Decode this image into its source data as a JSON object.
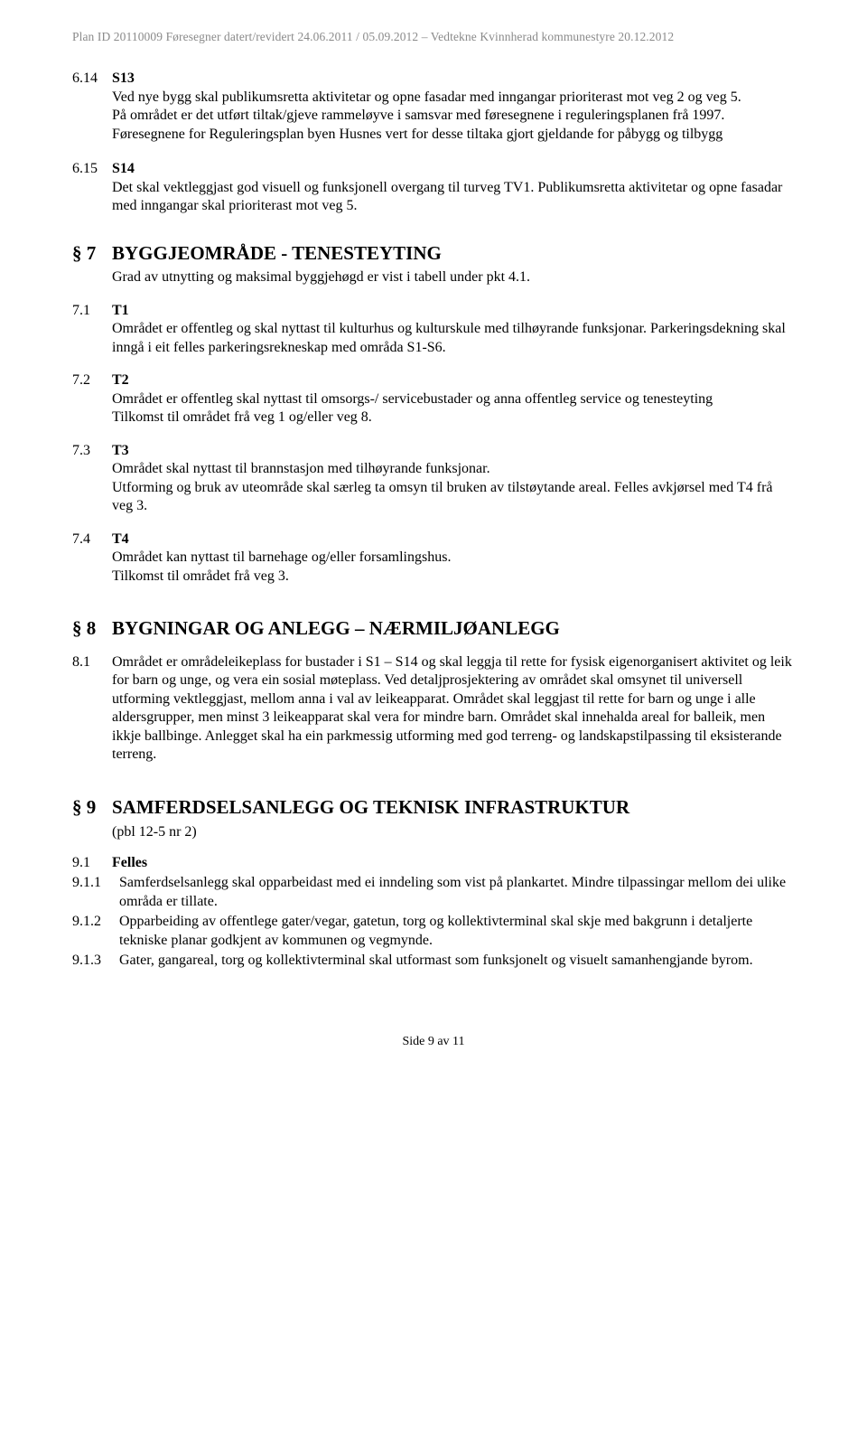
{
  "header": "Plan ID 20110009  Føresegner datert/revidert 24.06.2011 / 05.09.2012 – Vedtekne Kvinnherad kommunestyre 20.12.2012",
  "s614": {
    "num": "6.14",
    "label": "S13",
    "para": "Ved nye bygg skal publikumsretta aktivitetar og opne fasadar med inngangar prioriterast mot veg 2 og veg 5.\nPå området er det utført tiltak/gjeve rammeløyve i samsvar med føresegnene i reguleringsplanen frå 1997. Føresegnene for Reguleringsplan byen Husnes vert for desse tiltaka gjort gjeldande for påbygg og tilbygg"
  },
  "s615": {
    "num": "6.15",
    "label": "S14",
    "para": "Det skal vektleggjast god visuell og funksjonell overgang til turveg TV1. Publikumsretta aktivitetar og opne fasadar med inngangar skal prioriterast mot veg 5."
  },
  "sec7": {
    "num": "§ 7",
    "title": "BYGGJEOMRÅDE - TENESTEYTING",
    "sub": "Grad av utnytting og maksimal byggjehøgd er vist i tabell under pkt 4.1."
  },
  "s71": {
    "num": "7.1",
    "label": "T1",
    "para": "Området er offentleg og skal nyttast til kulturhus og kulturskule med tilhøyrande funksjonar. Parkeringsdekning skal inngå i eit felles parkeringsrekneskap med områda S1-S6."
  },
  "s72": {
    "num": "7.2",
    "label": "T2",
    "para": "Området er offentleg skal nyttast til omsorgs-/ servicebustader og anna offentleg service og tenesteyting\nTilkomst til området frå veg 1 og/eller veg 8."
  },
  "s73": {
    "num": "7.3",
    "label": "T3",
    "para": "Området skal nyttast til brannstasjon med tilhøyrande funksjonar.\nUtforming og bruk av uteområde skal særleg ta omsyn til bruken av tilstøytande areal. Felles avkjørsel med T4 frå veg 3."
  },
  "s74": {
    "num": "7.4",
    "label": "T4",
    "para": "Området kan nyttast til barnehage og/eller forsamlingshus.\nTilkomst til området frå veg 3."
  },
  "sec8": {
    "num": "§ 8",
    "title": "BYGNINGAR OG ANLEGG – NÆRMILJØANLEGG"
  },
  "s81": {
    "num": "8.1",
    "para": "Området er områdeleikeplass for bustader i S1 – S14 og skal leggja til rette for fysisk eigenorganisert aktivitet og leik for barn og unge, og vera ein sosial møteplass. Ved detaljprosjektering av området skal omsynet til universell utforming vektleggjast, mellom anna i val av leikeapparat. Området skal leggjast til rette for barn og unge i alle aldersgrupper, men minst 3 leikeapparat skal vera for mindre barn. Området skal innehalda areal for balleik, men ikkje ballbinge. Anlegget skal ha ein parkmessig utforming med god terreng- og landskapstilpassing til eksisterande terreng."
  },
  "sec9": {
    "num": "§ 9",
    "title": "SAMFERDSELSANLEGG OG TEKNISK INFRASTRUKTUR",
    "paren": "(pbl 12-5 nr 2)"
  },
  "s91": {
    "num": "9.1",
    "label": "Felles"
  },
  "s911": {
    "num": "9.1.1",
    "para": "Samferdselsanlegg skal opparbeidast med ei inndeling som vist på plankartet. Mindre tilpassingar mellom dei ulike områda er tillate."
  },
  "s912": {
    "num": "9.1.2",
    "para": "Opparbeiding av offentlege gater/vegar, gatetun, torg og kollektivterminal skal skje med bakgrunn i detaljerte tekniske planar godkjent av kommunen og vegmynde."
  },
  "s913": {
    "num": "9.1.3",
    "para": "Gater, gangareal, torg og kollektivterminal skal utformast som funksjonelt og visuelt samanhengjande byrom."
  },
  "footer": "Side 9 av 11"
}
